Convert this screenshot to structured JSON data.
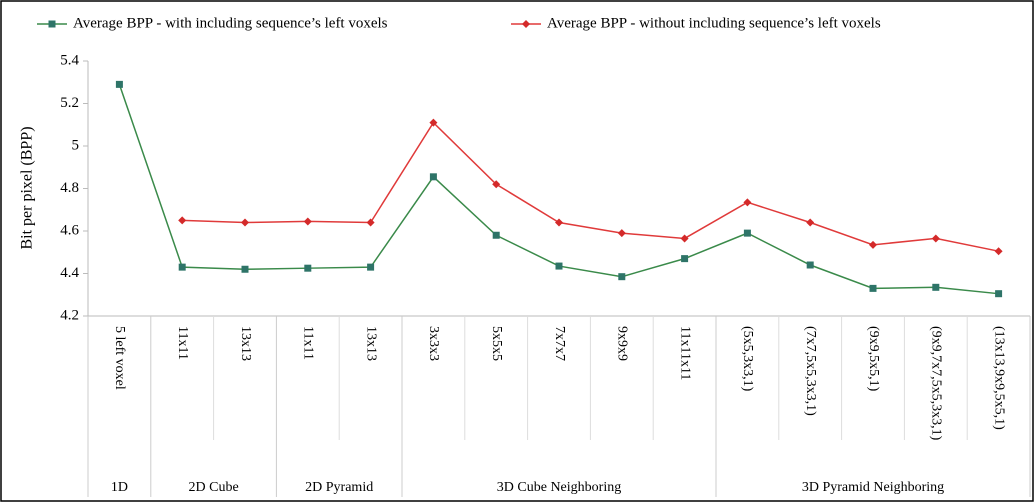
{
  "chart_data": {
    "type": "line",
    "y_label": "Bit per pixel (BPP)",
    "category_groups": [
      {
        "name": "1D",
        "categories": [
          "5 left voxel"
        ]
      },
      {
        "name": "2D Cube",
        "categories": [
          "11x11",
          "13x13"
        ]
      },
      {
        "name": "2D Pyramid",
        "categories": [
          "11x11",
          "13x13"
        ]
      },
      {
        "name": "3D Cube Neighboring",
        "categories": [
          "3x3x3",
          "5x5x5",
          "7x7x7",
          "9x9x9",
          "11x11x11"
        ]
      },
      {
        "name": "3D Pyramid Neighboring",
        "categories": [
          "(5x5,3x3,1)",
          "(7x7,5x5,3x3,1)",
          "(9x9,5x5,1)",
          "(9x9,7x7,5x5,3x3,1)",
          "(13x13,9x9,5x5,1)"
        ]
      }
    ],
    "series": [
      {
        "name": "Average BPP - with including sequence’s left voxels",
        "color": "#3a8a4a",
        "marker_color": "#2e7468",
        "marker": "square",
        "values": [
          5.29,
          4.43,
          4.42,
          4.425,
          4.43,
          4.855,
          4.58,
          4.435,
          4.385,
          4.47,
          4.59,
          4.44,
          4.33,
          4.335,
          4.305
        ]
      },
      {
        "name": "Average BPP - without including sequence’s left voxels",
        "color": "#e03a3a",
        "marker_color": "#d42a2a",
        "marker": "diamond",
        "values": [
          null,
          4.65,
          4.64,
          4.645,
          4.64,
          5.11,
          4.82,
          4.64,
          4.59,
          4.565,
          4.735,
          4.64,
          4.535,
          4.565,
          4.505
        ]
      }
    ],
    "ylim": [
      4.2,
      5.4
    ],
    "yticks": [
      4.2,
      4.4,
      4.6,
      4.8,
      5,
      5.2,
      5.4
    ],
    "grid": false,
    "legend": "top"
  }
}
